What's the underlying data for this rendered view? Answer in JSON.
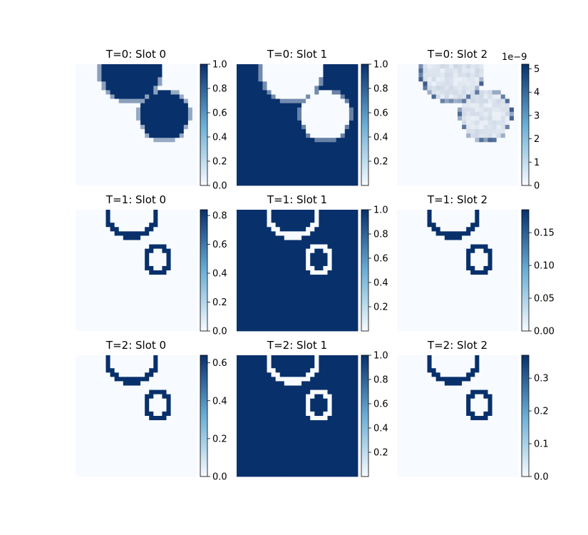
{
  "chart_data": {
    "type": "heatmap",
    "colormap": [
      "#f7fbff",
      "#08306b"
    ],
    "panels": [
      {
        "title": "T=0: Slot 0",
        "vmin": 0,
        "vmax": 1.0,
        "ticks": [
          "0.0",
          "0.2",
          "0.4",
          "0.6",
          "0.8",
          "1.0"
        ],
        "tick_values": [
          0,
          0.2,
          0.4,
          0.6,
          0.8,
          1.0
        ],
        "offset_label": "",
        "mode": "mask-soft",
        "inverse": false
      },
      {
        "title": "T=0: Slot 1",
        "vmin": 0.0,
        "vmax": 1.0,
        "ticks": [
          "0.2",
          "0.4",
          "0.6",
          "0.8",
          "1.0"
        ],
        "tick_values": [
          0.2,
          0.4,
          0.6,
          0.8,
          1.0
        ],
        "offset_label": "",
        "mode": "mask-soft",
        "inverse": true
      },
      {
        "title": "T=0: Slot 2",
        "vmin": 0,
        "vmax": 5.2,
        "ticks": [
          "0",
          "1",
          "2",
          "3",
          "4",
          "5"
        ],
        "tick_values": [
          0,
          1,
          2,
          3,
          4,
          5
        ],
        "offset_label": "1e−9",
        "mode": "mask-faint",
        "inverse": false
      },
      {
        "title": "T=1: Slot 0",
        "vmin": 0,
        "vmax": 0.84,
        "ticks": [
          "0.0",
          "0.2",
          "0.4",
          "0.6",
          "0.8"
        ],
        "tick_values": [
          0,
          0.2,
          0.4,
          0.6,
          0.8
        ],
        "offset_label": "",
        "mode": "outline",
        "inverse": false
      },
      {
        "title": "T=1: Slot 1",
        "vmin": 0.0,
        "vmax": 1.0,
        "ticks": [
          "0.2",
          "0.4",
          "0.6",
          "0.8",
          "1.0"
        ],
        "tick_values": [
          0.2,
          0.4,
          0.6,
          0.8,
          1.0
        ],
        "offset_label": "",
        "mode": "outline",
        "inverse": true
      },
      {
        "title": "T=1: Slot 2",
        "vmin": 0,
        "vmax": 0.185,
        "ticks": [
          "0.00",
          "0.05",
          "0.10",
          "0.15"
        ],
        "tick_values": [
          0,
          0.05,
          0.1,
          0.15
        ],
        "offset_label": "",
        "mode": "outline",
        "inverse": false
      },
      {
        "title": "T=2: Slot 0",
        "vmin": 0,
        "vmax": 0.64,
        "ticks": [
          "0.0",
          "0.2",
          "0.4",
          "0.6"
        ],
        "tick_values": [
          0,
          0.2,
          0.4,
          0.6
        ],
        "offset_label": "",
        "mode": "outline",
        "inverse": false
      },
      {
        "title": "T=2: Slot 1",
        "vmin": 0.0,
        "vmax": 1.0,
        "ticks": [
          "0.2",
          "0.4",
          "0.6",
          "0.8",
          "1.0"
        ],
        "tick_values": [
          0.2,
          0.4,
          0.6,
          0.8,
          1.0
        ],
        "offset_label": "",
        "mode": "outline",
        "inverse": true
      },
      {
        "title": "T=2: Slot 2",
        "vmin": 0,
        "vmax": 0.37,
        "ticks": [
          "0.0",
          "0.1",
          "0.2",
          "0.3"
        ],
        "tick_values": [
          0,
          0.1,
          0.2,
          0.3
        ],
        "offset_label": "",
        "mode": "outline",
        "inverse": false
      }
    ],
    "grid": "off",
    "legend": "colorbar-right"
  }
}
